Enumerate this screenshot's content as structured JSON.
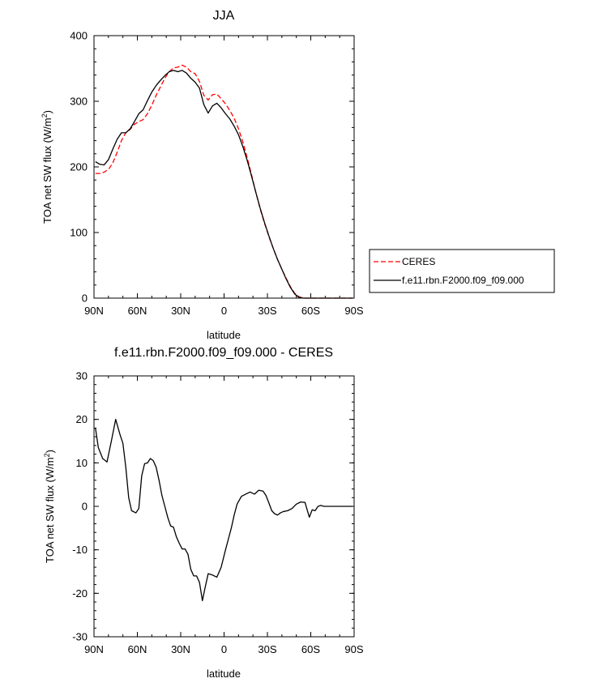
{
  "chart_data": [
    {
      "type": "line",
      "title": "JJA",
      "xlabel": "latitude",
      "ylabel": "TOA net SW flux (W/m",
      "ylabel_sup": "2",
      "ylabel_close": ")",
      "xlim": [
        90,
        -90
      ],
      "ylim": [
        0,
        400
      ],
      "x_ticks": [
        90,
        60,
        30,
        0,
        -30,
        -60,
        -90
      ],
      "x_tick_labels": [
        "90N",
        "60N",
        "30N",
        "0",
        "30S",
        "60S",
        "90S"
      ],
      "y_ticks": [
        0,
        100,
        200,
        300,
        400
      ],
      "y_tick_labels": [
        "0",
        "100",
        "200",
        "300",
        "400"
      ],
      "grid": false,
      "legend_position": "right",
      "series": [
        {
          "name": "CERES",
          "color": "#ff0000",
          "dash": "dashed",
          "x": [
            89,
            86,
            83,
            80,
            77,
            74,
            71,
            68,
            65,
            62,
            59,
            56,
            53,
            50,
            47,
            44,
            41,
            38,
            35,
            32,
            29,
            26,
            23,
            20,
            17,
            14,
            11,
            8,
            5,
            2,
            -1,
            -4,
            -7,
            -10,
            -13,
            -16,
            -19,
            -22,
            -25,
            -28,
            -31,
            -34,
            -37,
            -40,
            -43,
            -46,
            -49,
            -52,
            -55,
            -58,
            -61,
            -64,
            -67,
            -70,
            -73,
            -76,
            -79,
            -82,
            -85,
            -89
          ],
          "values": [
            190,
            190,
            192,
            196,
            206,
            222,
            240,
            252,
            257,
            265,
            269,
            272,
            281,
            294,
            309,
            322,
            335,
            345,
            351,
            352,
            355,
            352,
            345,
            342,
            330,
            309,
            302,
            310,
            311,
            304,
            296,
            286,
            274,
            258,
            238,
            214,
            188,
            161,
            136,
            114,
            94,
            76,
            59,
            44,
            30,
            17,
            7,
            2,
            0,
            0,
            0,
            0,
            0,
            0,
            0,
            0,
            0,
            0,
            0,
            0
          ]
        },
        {
          "name": "f.e11.rbn.F2000.f09_f09.000",
          "color": "#000000",
          "dash": "solid",
          "x": [
            89,
            86,
            83,
            80,
            77,
            74,
            71,
            68,
            65,
            62,
            59,
            56,
            53,
            50,
            47,
            44,
            41,
            38,
            35,
            32,
            29,
            26,
            23,
            20,
            17,
            14,
            11,
            8,
            5,
            2,
            -1,
            -4,
            -7,
            -10,
            -13,
            -16,
            -19,
            -22,
            -25,
            -28,
            -31,
            -34,
            -37,
            -40,
            -43,
            -46,
            -49,
            -52,
            -55,
            -58,
            -61,
            -64,
            -67,
            -70,
            -73,
            -76,
            -79,
            -82,
            -85,
            -89
          ],
          "values": [
            208,
            204,
            203,
            211,
            227,
            242,
            252,
            252,
            258,
            269,
            281,
            287,
            301,
            314,
            324,
            332,
            339,
            345,
            347,
            345,
            347,
            343,
            335,
            329,
            320,
            295,
            282,
            293,
            297,
            290,
            281,
            273,
            262,
            249,
            231,
            210,
            186,
            161,
            137,
            115,
            95,
            76,
            59,
            44,
            29,
            16,
            6,
            1,
            0,
            0,
            0,
            0,
            0,
            0,
            0,
            0,
            0,
            0,
            0,
            0
          ]
        }
      ]
    },
    {
      "type": "line",
      "title": "f.e11.rbn.F2000.f09_f09.000 - CERES",
      "xlabel": "latitude",
      "ylabel": "TOA net SW flux (W/m",
      "ylabel_sup": "2",
      "ylabel_close": ")",
      "xlim": [
        90,
        -90
      ],
      "ylim": [
        -30,
        30
      ],
      "x_ticks": [
        90,
        60,
        30,
        0,
        -30,
        -60,
        -90
      ],
      "x_tick_labels": [
        "90N",
        "60N",
        "30N",
        "0",
        "30S",
        "60S",
        "90S"
      ],
      "y_ticks": [
        -30,
        -20,
        -10,
        0,
        10,
        20,
        30
      ],
      "y_tick_labels": [
        "-30",
        "-20",
        "-10",
        "0",
        "10",
        "20",
        "30"
      ],
      "grid": false,
      "series": [
        {
          "name": "f.e11.rbn.F2000.f09_f09.000 - CERES",
          "color": "#000000",
          "dash": "solid",
          "x": [
            89,
            87,
            84,
            81,
            78,
            75,
            72,
            70,
            68,
            66,
            64,
            61,
            59,
            57,
            55,
            53,
            51,
            49,
            47,
            45,
            43,
            41,
            39,
            37,
            35,
            33,
            31,
            29,
            27,
            25,
            23,
            21,
            19,
            17,
            15,
            13,
            11,
            8,
            5,
            2,
            -1,
            -3,
            -5,
            -7,
            -9,
            -12,
            -15,
            -18,
            -21,
            -24,
            -27,
            -29,
            -31,
            -33,
            -35,
            -37,
            -39,
            -41,
            -44,
            -47,
            -50,
            -53,
            -56,
            -59,
            -61,
            -63,
            -65,
            -67,
            -69,
            -71,
            -73,
            -76,
            -79,
            -82,
            -85,
            -89
          ],
          "values": [
            18,
            13.5,
            11,
            10.2,
            15,
            20,
            16.5,
            14.5,
            9,
            2,
            -1,
            -1.5,
            -0.5,
            7,
            9.8,
            10,
            11,
            10.5,
            9,
            6,
            2.5,
            0,
            -2.5,
            -4.5,
            -4.8,
            -7,
            -8.5,
            -9.8,
            -9.8,
            -11,
            -14.5,
            -16,
            -16,
            -17.5,
            -21.7,
            -18.5,
            -15.5,
            -15.8,
            -16.3,
            -14,
            -10,
            -7.5,
            -5,
            -2,
            0.5,
            2.3,
            2.8,
            3.3,
            2.8,
            3.7,
            3.5,
            2.5,
            0.8,
            -1,
            -1.7,
            -2,
            -1.5,
            -1.2,
            -1,
            -0.5,
            0.5,
            1,
            0.9,
            -2.5,
            -0.8,
            -1,
            0,
            0.2,
            0,
            0,
            0,
            0,
            0,
            0,
            0,
            0
          ]
        }
      ]
    }
  ]
}
